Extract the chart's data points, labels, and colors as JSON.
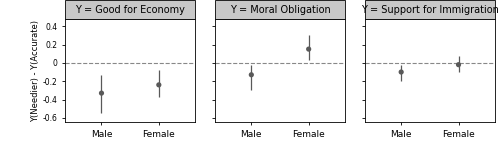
{
  "panels": [
    {
      "title": "Y = Good for Economy",
      "xlabels": [
        "Male",
        "Female"
      ],
      "means": [
        -0.33,
        -0.24
      ],
      "ci_low": [
        -0.55,
        -0.37
      ],
      "ci_high": [
        -0.13,
        -0.08
      ],
      "ylim": [
        -0.65,
        0.48
      ],
      "yticks": [
        -0.6,
        -0.4,
        -0.2,
        0.0,
        0.2,
        0.4
      ],
      "ytick_labels": [
        "-0.6",
        "-0.4",
        "-0.2",
        "0",
        "0.2",
        "0.4"
      ],
      "show_ylabel": true
    },
    {
      "title": "Y = Moral Obligation",
      "xlabels": [
        "Male",
        "Female"
      ],
      "means": [
        -0.13,
        0.15
      ],
      "ci_low": [
        -0.3,
        0.03
      ],
      "ci_high": [
        -0.02,
        0.3
      ],
      "ylim": [
        -0.65,
        0.48
      ],
      "yticks": [
        -0.6,
        -0.4,
        -0.2,
        0.0,
        0.2,
        0.4
      ],
      "ytick_labels": [],
      "show_ylabel": false
    },
    {
      "title": "Y = Support for Immigration",
      "xlabels": [
        "Male",
        "Female"
      ],
      "means": [
        -0.1,
        -0.02
      ],
      "ci_low": [
        -0.2,
        -0.1
      ],
      "ci_high": [
        -0.02,
        0.07
      ],
      "ylim": [
        -0.65,
        0.48
      ],
      "yticks": [
        -0.6,
        -0.4,
        -0.2,
        0.0,
        0.2,
        0.4
      ],
      "ytick_labels": [],
      "show_ylabel": false
    }
  ],
  "dot_color": "#595959",
  "dot_size": 14,
  "line_color": "#595959",
  "line_width": 0.9,
  "dashed_line_color": "#888888",
  "background_color": "#ffffff",
  "title_bg_color": "#c8c8c8",
  "ylabel": "Y(Needier) - Y(Accurate)",
  "xlabel_fontsize": 6.5,
  "ylabel_fontsize": 6.0,
  "title_fontsize": 7.0,
  "tick_fontsize": 5.5,
  "x_positions": [
    0.28,
    0.72
  ]
}
